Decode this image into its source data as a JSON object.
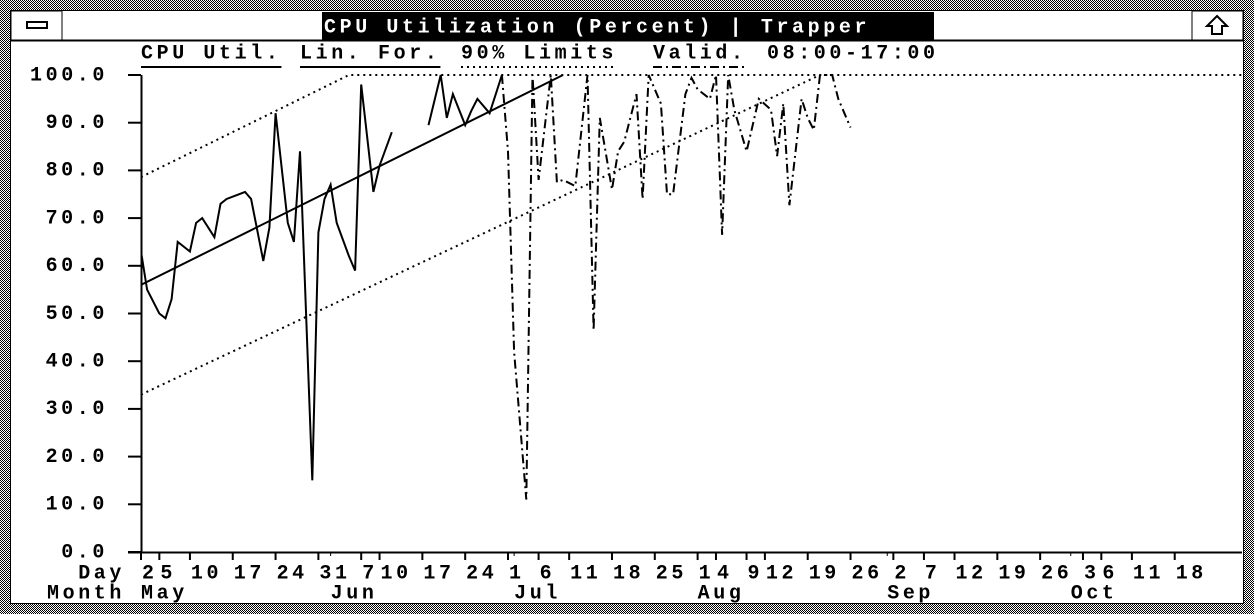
{
  "chart_data": {
    "type": "line",
    "title": "CPU Utilization (Percent) | Trapper",
    "subtitle": "08:00-17:00",
    "day_row_label": "Day",
    "month_row_label": "Month",
    "xlim": [
      1,
      181
    ],
    "ylim": [
      0,
      100
    ],
    "yticks": [
      {
        "value": 0,
        "label": "0.0"
      },
      {
        "value": 10,
        "label": "10.0"
      },
      {
        "value": 20,
        "label": "20.0"
      },
      {
        "value": 30,
        "label": "30.0"
      },
      {
        "value": 40,
        "label": "40.0"
      },
      {
        "value": 50,
        "label": "50.0"
      },
      {
        "value": 60,
        "label": "60.0"
      },
      {
        "value": 70,
        "label": "70.0"
      },
      {
        "value": 80,
        "label": "80.0"
      },
      {
        "value": 90,
        "label": "90.0"
      },
      {
        "value": 100,
        "label": "100.0"
      }
    ],
    "xticks": [
      {
        "value": 1,
        "label": "2"
      },
      {
        "value": 4,
        "label": "5"
      },
      {
        "value": 9,
        "label": "10"
      },
      {
        "value": 16,
        "label": "17"
      },
      {
        "value": 23,
        "label": "24"
      },
      {
        "value": 30,
        "label": "31"
      },
      {
        "value": 37,
        "label": "7"
      },
      {
        "value": 40,
        "label": "10"
      },
      {
        "value": 47,
        "label": "17"
      },
      {
        "value": 54,
        "label": "24"
      },
      {
        "value": 61,
        "label": "1"
      },
      {
        "value": 66,
        "label": "6"
      },
      {
        "value": 71,
        "label": "11"
      },
      {
        "value": 78,
        "label": "18"
      },
      {
        "value": 85,
        "label": "25"
      },
      {
        "value": 92,
        "label": "1"
      },
      {
        "value": 95,
        "label": "4"
      },
      {
        "value": 100,
        "label": "9"
      },
      {
        "value": 103,
        "label": "12"
      },
      {
        "value": 110,
        "label": "19"
      },
      {
        "value": 117,
        "label": "26"
      },
      {
        "value": 124,
        "label": "2"
      },
      {
        "value": 129,
        "label": "7"
      },
      {
        "value": 134,
        "label": "12"
      },
      {
        "value": 141,
        "label": "19"
      },
      {
        "value": 148,
        "label": "26"
      },
      {
        "value": 155,
        "label": "3"
      },
      {
        "value": 158,
        "label": "6"
      },
      {
        "value": 163,
        "label": "11"
      },
      {
        "value": 170,
        "label": "18"
      }
    ],
    "month_ticks": [
      {
        "value": 1,
        "label": "May"
      },
      {
        "value": 32,
        "label": "Jun"
      },
      {
        "value": 62,
        "label": "Jul"
      },
      {
        "value": 92,
        "label": "Aug"
      },
      {
        "value": 123,
        "label": "Sep"
      },
      {
        "value": 153,
        "label": "Oct"
      }
    ],
    "series": [
      {
        "name": "CPU Util.",
        "color": "#000000",
        "style": "solid",
        "x": [
          1,
          2,
          4,
          5,
          6,
          7,
          9,
          10,
          11,
          13,
          14,
          15,
          17,
          18,
          19,
          21,
          22,
          23,
          25,
          26,
          27,
          29,
          30,
          31,
          32,
          33,
          35,
          36,
          37,
          39,
          40,
          42,
          45,
          48,
          50,
          51,
          52,
          54,
          55,
          56,
          58,
          59,
          60
        ],
        "values": [
          63,
          55,
          50,
          49,
          53,
          65,
          63,
          69,
          70,
          66,
          73,
          74,
          75,
          75.5,
          74,
          61,
          68,
          92,
          69,
          65,
          84,
          15,
          67,
          74,
          77,
          69,
          62,
          59,
          98,
          75.5,
          81,
          88,
          null,
          89.5,
          100,
          91,
          96,
          89.5,
          92.5,
          95,
          92,
          96,
          100
        ]
      },
      {
        "name": "Lin. For.",
        "color": "#000000",
        "style": "solid",
        "x": [
          1,
          70
        ],
        "values": [
          56,
          100
        ]
      },
      {
        "name": "90% Limits",
        "color": "#000000",
        "style": "dotted",
        "x": [
          1,
          35,
          181
        ],
        "values": [
          78.6,
          100,
          100
        ]
      },
      {
        "color": "#000000",
        "style": "dotted",
        "x": [
          1,
          112
        ],
        "values": [
          33,
          100
        ]
      },
      {
        "name": "Valid.",
        "color": "#000000",
        "style": "dashdot",
        "x": [
          60,
          61,
          62,
          64,
          65,
          66,
          68,
          69,
          70,
          72,
          74,
          75,
          76,
          78,
          79,
          80,
          82,
          83,
          84,
          86,
          87,
          88,
          90,
          91,
          92,
          94,
          95,
          96,
          97,
          98,
          100,
          101,
          102,
          104,
          105,
          106,
          107,
          109,
          110,
          111,
          112,
          114,
          115,
          117
        ],
        "values": [
          100,
          84,
          42,
          11,
          100,
          78,
          100,
          77.5,
          78,
          76.7,
          100,
          46.5,
          91,
          76,
          84,
          86,
          96,
          74,
          100,
          94,
          75,
          75,
          96,
          99.4,
          97,
          95,
          100,
          66.5,
          100,
          92.7,
          84,
          89.5,
          95,
          92.7,
          83,
          94,
          72.7,
          95,
          91,
          88.5,
          100,
          100,
          95,
          89
        ]
      }
    ]
  }
}
